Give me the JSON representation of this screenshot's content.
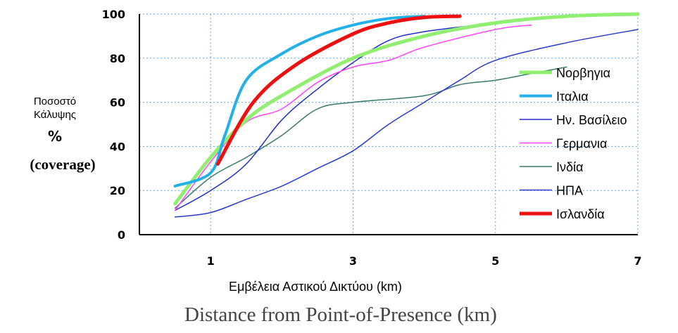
{
  "chart_data": {
    "type": "line",
    "xlabel": "Εμβέλεια Αστικού Δικτύου (km)",
    "xlabel_en": "Distance from Point-of-Presence (km)",
    "ylabel_lines": [
      "Ποσοστό",
      "Κάλυψης",
      "%",
      "(coverage)"
    ],
    "xlim": [
      0,
      7
    ],
    "ylim": [
      0,
      100
    ],
    "x_ticks": [
      1,
      3,
      5,
      7
    ],
    "y_ticks": [
      0,
      20,
      40,
      60,
      80,
      100
    ],
    "y_tick_labels": [
      "0",
      "20",
      "40",
      "60",
      "80",
      "100"
    ],
    "grid": true,
    "legend_position": "right",
    "series": [
      {
        "name": "Νορβηγια",
        "color": "#90ee70",
        "width": 5,
        "x": [
          0.5,
          1,
          1.5,
          2,
          3,
          4,
          5,
          6,
          7
        ],
        "y": [
          14,
          35,
          52,
          63,
          80,
          90,
          96,
          99,
          100
        ]
      },
      {
        "name": "Ιταλια",
        "color": "#22b0e8",
        "width": 4,
        "x": [
          0.5,
          1,
          1.2,
          1.5,
          2,
          2.5,
          3,
          3.5,
          4
        ],
        "y": [
          22,
          28,
          45,
          70,
          82,
          90,
          95,
          98,
          99
        ]
      },
      {
        "name": "Ην. Βασίλειο",
        "color": "#1e2ec8",
        "width": 1.5,
        "x": [
          0.5,
          1,
          1.5,
          2,
          2.5,
          3,
          3.5,
          4,
          5
        ],
        "y": [
          11,
          20,
          32,
          52,
          66,
          78,
          88,
          92,
          96
        ]
      },
      {
        "name": "Γερμανια",
        "color": "#ff44ff",
        "width": 1.5,
        "x": [
          0.5,
          1,
          1.5,
          2,
          2.5,
          3,
          3.5,
          4,
          5,
          5.5
        ],
        "y": [
          11,
          33,
          51,
          57,
          69,
          76,
          79,
          85,
          93,
          95
        ]
      },
      {
        "name": "Ινδία",
        "color": "#3a7a6a",
        "width": 1.5,
        "x": [
          0.5,
          1,
          1.5,
          2,
          2.5,
          3,
          4,
          4.5,
          5,
          5.5,
          6
        ],
        "y": [
          12,
          26,
          35,
          45,
          57,
          60,
          63,
          68,
          70,
          73,
          76
        ]
      },
      {
        "name": "ΗΠΑ",
        "color": "#2a3ad0",
        "width": 1.5,
        "x": [
          0.5,
          1,
          1.5,
          2,
          2.5,
          3,
          3.5,
          4,
          4.5,
          5,
          6,
          7
        ],
        "y": [
          8,
          10,
          16,
          22,
          30,
          38,
          50,
          60,
          70,
          79,
          87,
          93
        ]
      },
      {
        "name": "Ισλανδία",
        "color": "#ee1010",
        "width": 5,
        "x": [
          1.1,
          1.6,
          2.2,
          3,
          3.5,
          4,
          4.5
        ],
        "y": [
          32,
          60,
          77,
          91,
          96,
          98.5,
          99
        ]
      }
    ]
  }
}
